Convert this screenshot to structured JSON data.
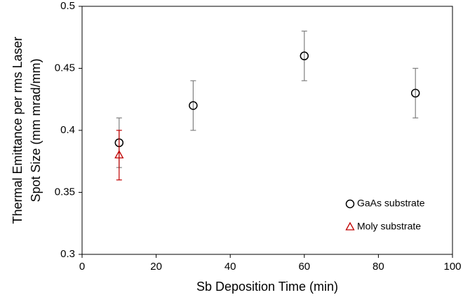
{
  "chart_data": {
    "type": "scatter",
    "x_label": "Sb Deposition Time (min)",
    "y_label": [
      "Thermal Emittance per rms Laser",
      "Spot Size  (mm mrad/mm)"
    ],
    "xlim": [
      0,
      100
    ],
    "xticks": [
      0,
      20,
      40,
      60,
      80,
      100
    ],
    "ylim": [
      0.3,
      0.5
    ],
    "yticks": [
      0.3,
      0.35,
      0.4,
      0.45,
      0.5
    ],
    "grid": false,
    "legend": "lower right",
    "series": [
      {
        "name": "GaAs substrate",
        "color": "#000000",
        "error_color": "#808080",
        "marker": "circle",
        "x": [
          10,
          30,
          60,
          90
        ],
        "values": [
          0.39,
          0.42,
          0.46,
          0.43
        ],
        "errors": [
          0.02,
          0.02,
          0.02,
          0.02
        ]
      },
      {
        "name": "Moly substrate",
        "color": "#c00000",
        "error_color": "#c00000",
        "marker": "triangle",
        "x": [
          10
        ],
        "values": [
          0.38
        ],
        "errors": [
          0.02
        ]
      }
    ]
  }
}
